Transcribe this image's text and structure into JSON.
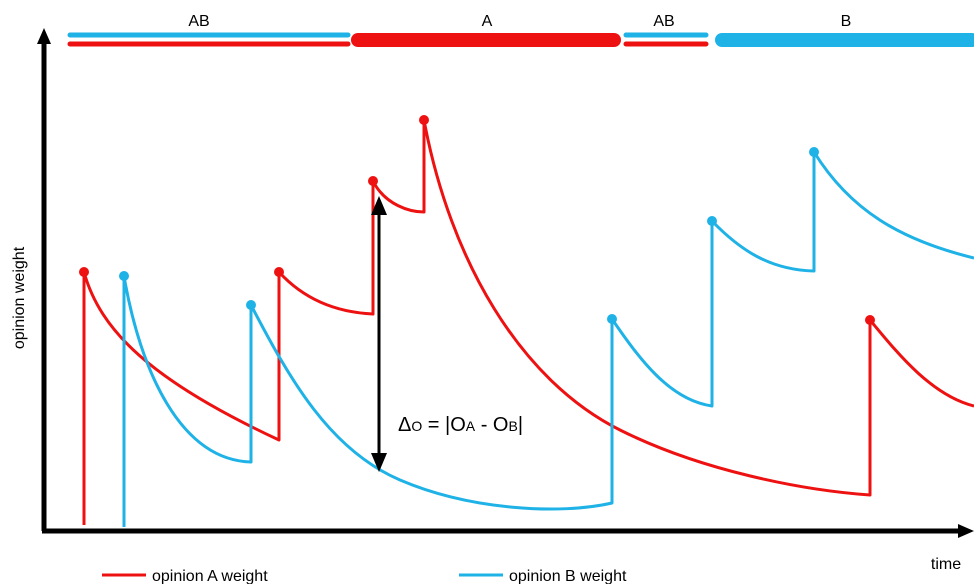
{
  "axes": {
    "ylabel": "opinion weight",
    "xlabel": "time"
  },
  "segments": [
    {
      "label": "AB",
      "opinions": [
        "B",
        "A"
      ]
    },
    {
      "label": "A",
      "opinions": [
        "A"
      ]
    },
    {
      "label": "AB",
      "opinions": [
        "B",
        "A"
      ]
    },
    {
      "label": "B",
      "opinions": [
        "B"
      ]
    }
  ],
  "annotation": {
    "delta": "Δ",
    "delta_sub": "O",
    "eq": " = |O",
    "sub_a": "A",
    "minus": " - O",
    "sub_b": "B",
    "close": "|"
  },
  "legend": [
    {
      "label": "opinion A weight",
      "color": "#ee1111"
    },
    {
      "label": "opinion B weight",
      "color": "#1fb2e6"
    }
  ],
  "colors": {
    "A": "#ee1111",
    "B": "#1fb2e6",
    "axis": "#000000"
  }
}
